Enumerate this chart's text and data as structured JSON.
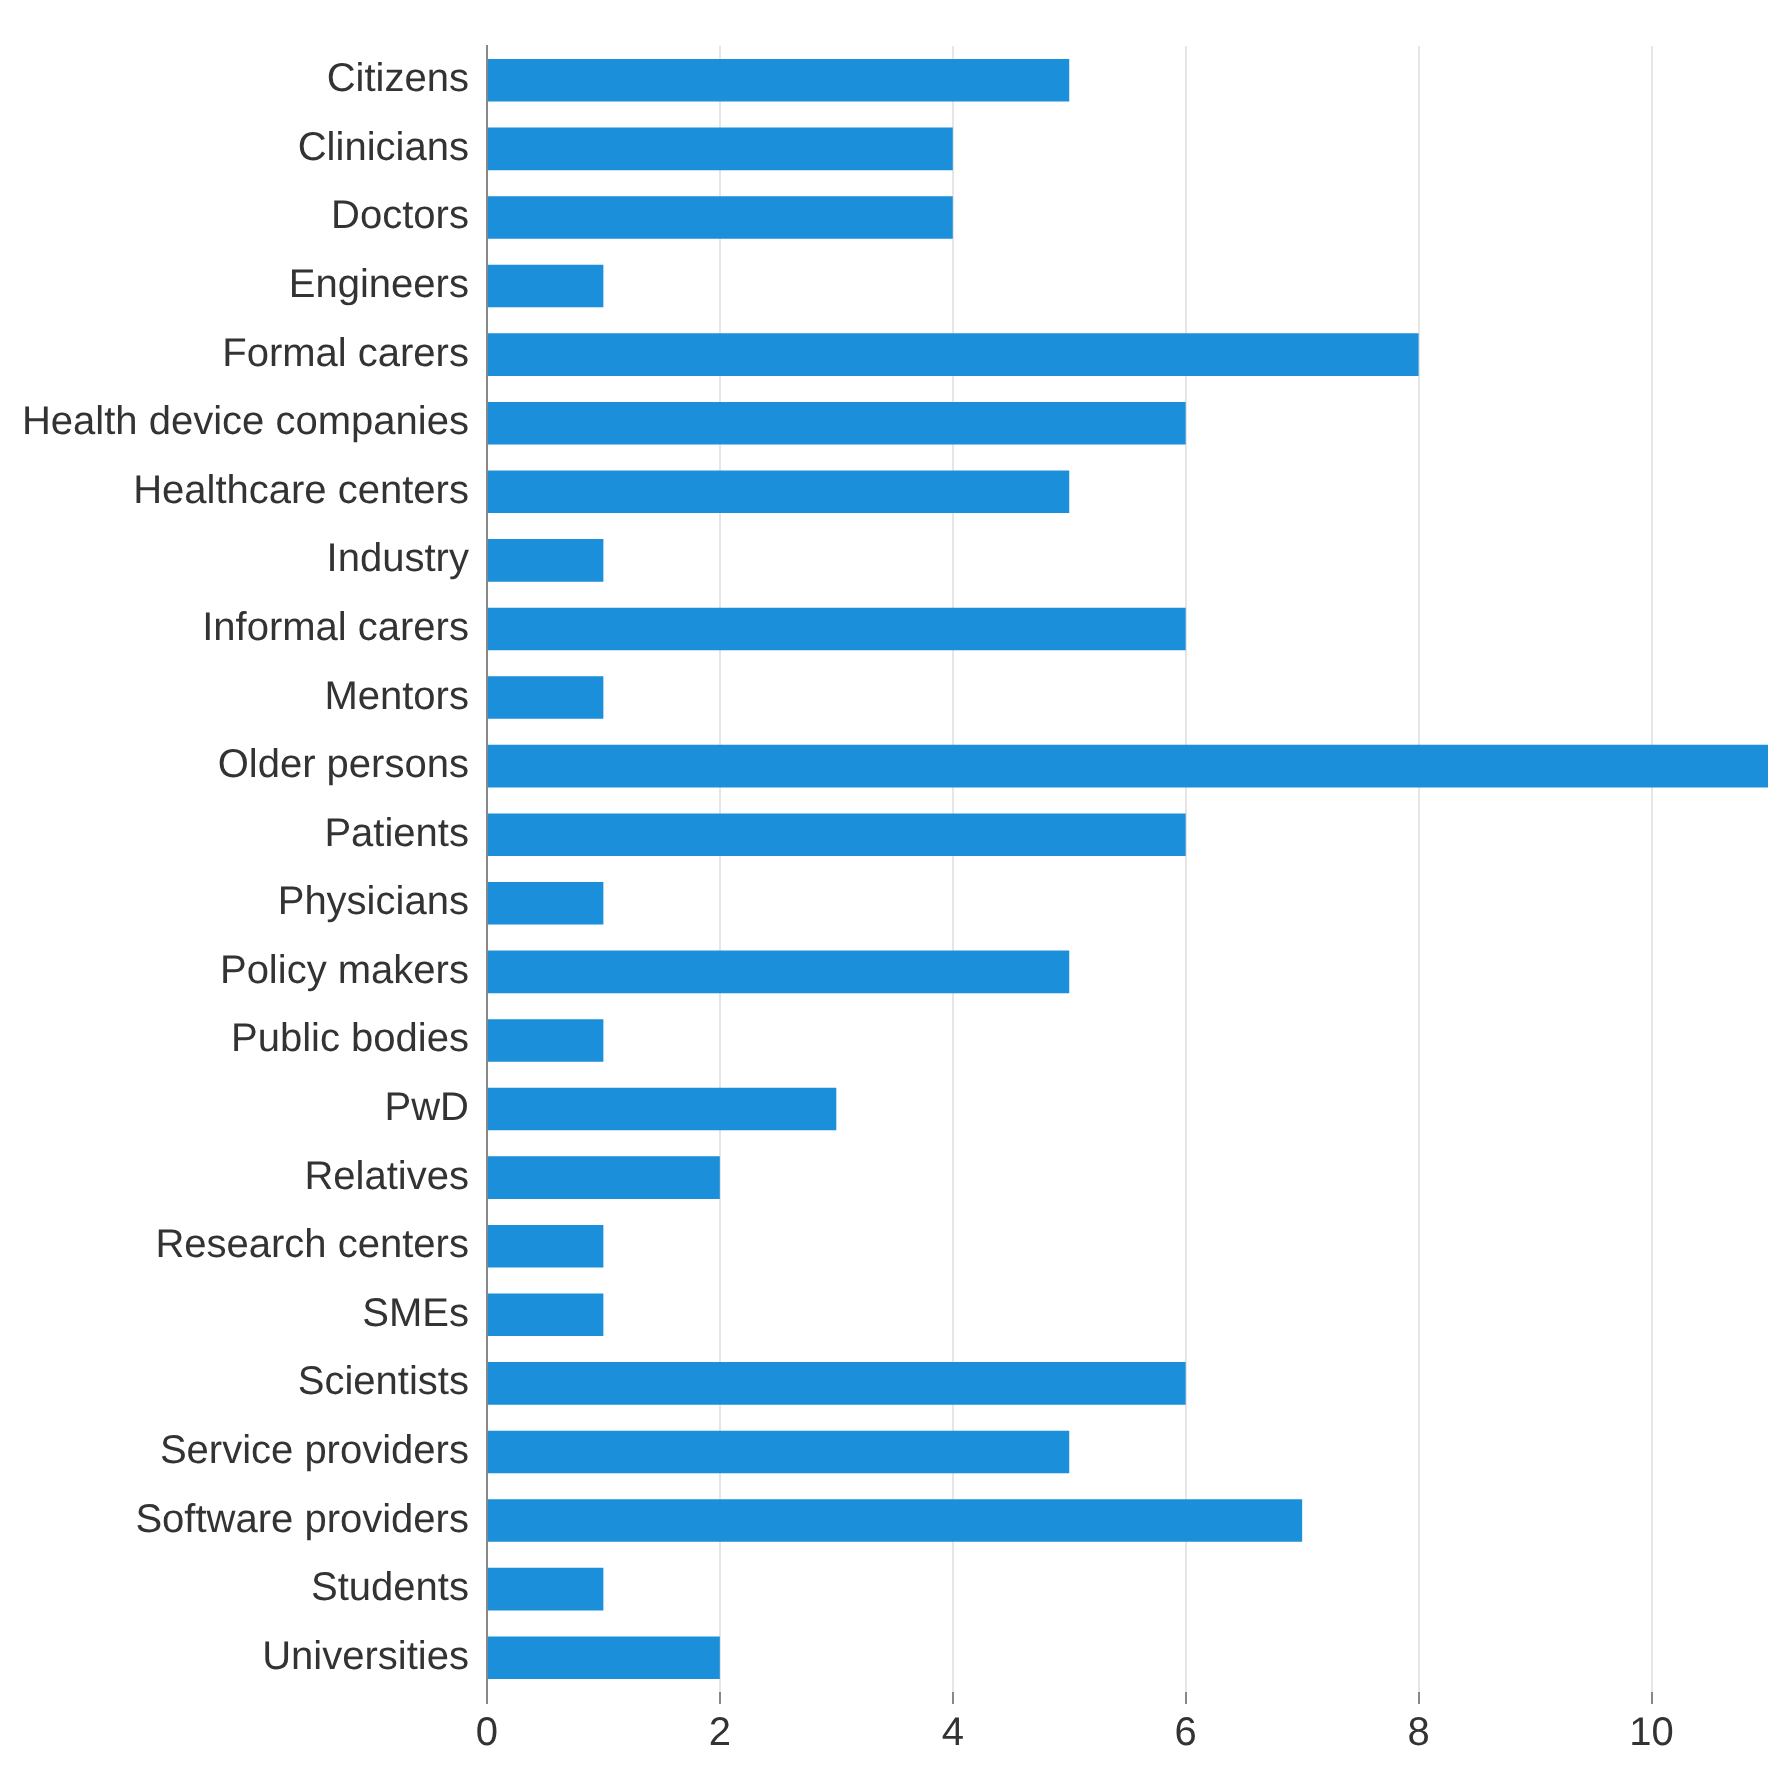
{
  "chart_data": {
    "type": "bar",
    "orientation": "horizontal",
    "categories": [
      "Citizens",
      "Clinicians",
      "Doctors",
      "Engineers",
      "Formal carers",
      "Health device companies",
      "Healthcare centers",
      "Industry",
      "Informal carers",
      "Mentors",
      "Older persons",
      "Patients",
      "Physicians",
      "Policy makers",
      "Public bodies",
      "PwD",
      "Relatives",
      "Research centers",
      "SMEs",
      "Scientists",
      "Service providers",
      "Software providers",
      "Students",
      "Universities"
    ],
    "values": [
      5,
      4,
      4,
      1,
      8,
      6,
      5,
      1,
      6,
      1,
      11,
      6,
      1,
      5,
      1,
      3,
      2,
      1,
      1,
      6,
      5,
      7,
      1,
      2
    ],
    "color": "#1b8fd9",
    "xlim": [
      0,
      11
    ],
    "xticks": [
      0,
      2,
      4,
      6,
      8,
      10
    ],
    "grid": "x",
    "legend": false
  }
}
